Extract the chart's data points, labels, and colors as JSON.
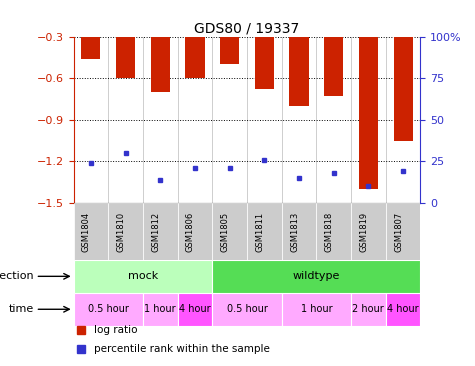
{
  "title": "GDS80 / 19337",
  "samples": [
    "GSM1804",
    "GSM1810",
    "GSM1812",
    "GSM1806",
    "GSM1805",
    "GSM1811",
    "GSM1813",
    "GSM1818",
    "GSM1819",
    "GSM1807"
  ],
  "log_ratios": [
    -0.46,
    -0.6,
    -0.7,
    -0.6,
    -0.5,
    -0.68,
    -0.8,
    -0.73,
    -1.4,
    -1.05
  ],
  "percentile_ranks": [
    24,
    30,
    14,
    21,
    21,
    26,
    15,
    18,
    10,
    19
  ],
  "ylim_left": [
    -1.5,
    -0.3
  ],
  "ylim_right": [
    0,
    100
  ],
  "yticks_left": [
    -1.5,
    -1.2,
    -0.9,
    -0.6,
    -0.3
  ],
  "yticks_right": [
    0,
    25,
    50,
    75,
    100
  ],
  "ytick_labels_right": [
    "0",
    "25",
    "50",
    "75",
    "100%"
  ],
  "bar_color": "#cc2200",
  "blue_color": "#3333cc",
  "bar_width": 0.55,
  "infection_groups": [
    {
      "label": "mock",
      "start": 0,
      "end": 4,
      "color": "#bbffbb"
    },
    {
      "label": "wildtype",
      "start": 4,
      "end": 10,
      "color": "#55dd55"
    }
  ],
  "time_groups": [
    {
      "label": "0.5 hour",
      "start": 0,
      "end": 2,
      "color": "#ffaaff"
    },
    {
      "label": "1 hour",
      "start": 2,
      "end": 3,
      "color": "#ffaaff"
    },
    {
      "label": "4 hour",
      "start": 3,
      "end": 4,
      "color": "#ff55ff"
    },
    {
      "label": "0.5 hour",
      "start": 4,
      "end": 6,
      "color": "#ffaaff"
    },
    {
      "label": "1 hour",
      "start": 6,
      "end": 8,
      "color": "#ffaaff"
    },
    {
      "label": "2 hour",
      "start": 8,
      "end": 9,
      "color": "#ffaaff"
    },
    {
      "label": "4 hour",
      "start": 9,
      "end": 10,
      "color": "#ff55ff"
    }
  ],
  "axis_color_left": "#cc2200",
  "axis_color_right": "#3333cc",
  "sample_bg_color": "#cccccc",
  "bg_color": "#ffffff",
  "legend_items": [
    {
      "color": "#cc2200",
      "label": "log ratio"
    },
    {
      "color": "#3333cc",
      "label": "percentile rank within the sample"
    }
  ]
}
